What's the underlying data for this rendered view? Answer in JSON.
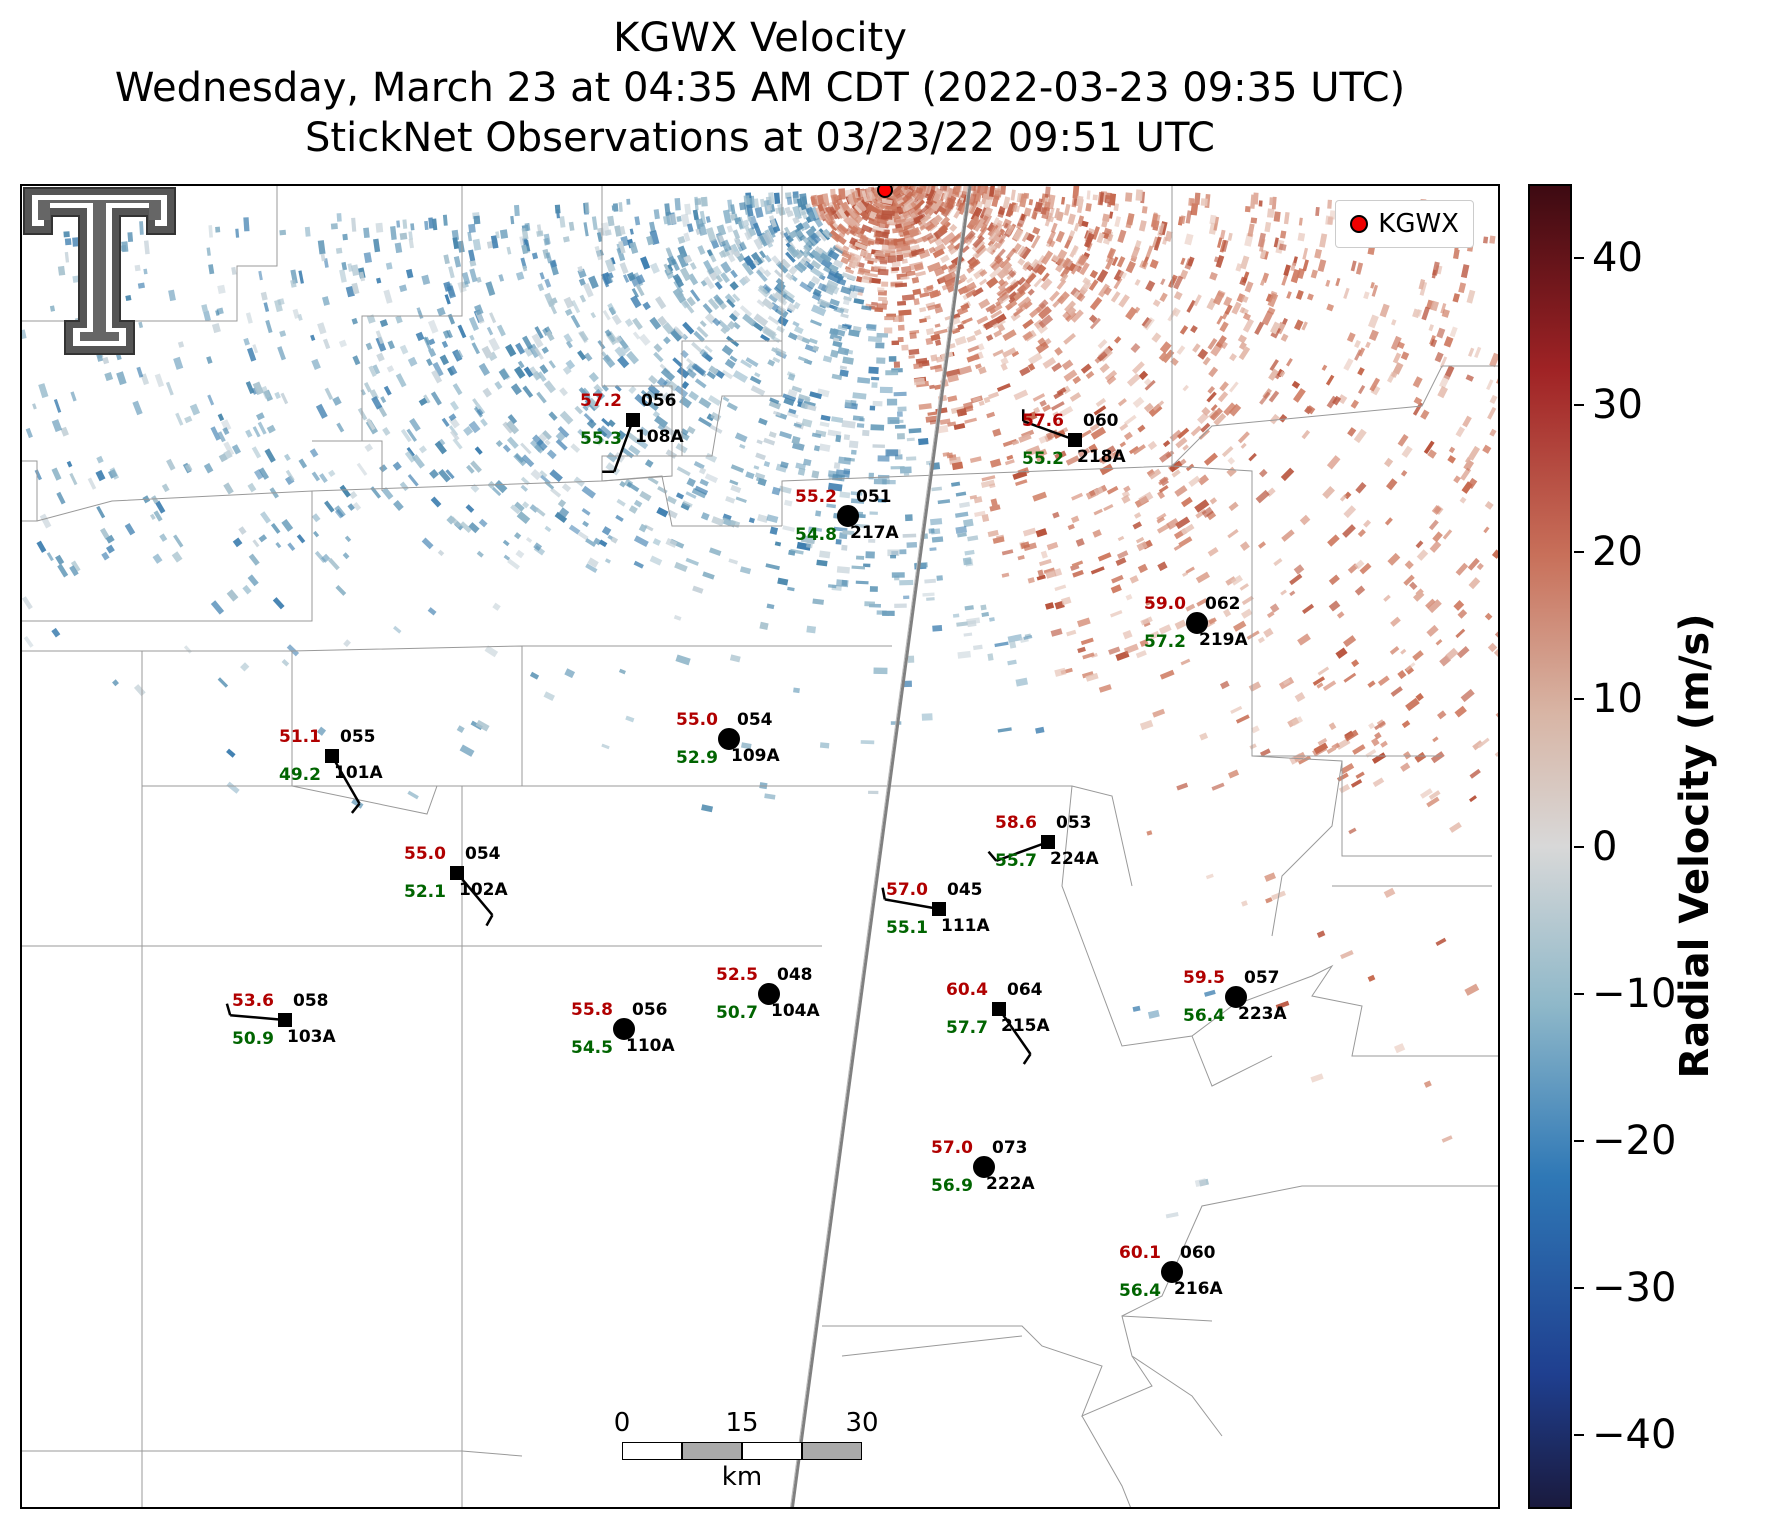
{
  "header": {
    "title": "KGWX Velocity",
    "subtitle": "Wednesday, March 23 at 04:35 AM CDT (2022-03-23 09:35 UTC)",
    "obs_time": "StickNet Observations at 03/23/22 09:51 UTC"
  },
  "legend": {
    "label": "KGWX"
  },
  "scalebar": {
    "labels": [
      "0",
      "15",
      "30"
    ],
    "unit": "km"
  },
  "colorbar": {
    "title": "Radial Velocity (m/s)",
    "ticks": [
      "40",
      "30",
      "20",
      "10",
      "0",
      "−10",
      "−20",
      "−30",
      "−40"
    ],
    "colors": {
      "high": "#3d0a12",
      "mid": "#d8d8d8",
      "low": "#1a1a3e"
    }
  },
  "colors": {
    "temp": "#b00000",
    "dew": "#006400",
    "id": "#000000",
    "county": "#999999"
  },
  "stations": [
    {
      "id": "108A",
      "temp": "57.2",
      "dew": "55.3",
      "pres": "056",
      "symbol": "square"
    },
    {
      "id": "218A",
      "temp": "57.6",
      "dew": "55.2",
      "pres": "060",
      "symbol": "square"
    },
    {
      "id": "217A",
      "temp": "55.2",
      "dew": "54.8",
      "pres": "051",
      "symbol": "circle"
    },
    {
      "id": "219A",
      "temp": "59.0",
      "dew": "57.2",
      "pres": "062",
      "symbol": "circle"
    },
    {
      "id": "101A",
      "temp": "51.1",
      "dew": "49.2",
      "pres": "055",
      "symbol": "square"
    },
    {
      "id": "109A",
      "temp": "55.0",
      "dew": "52.9",
      "pres": "054",
      "symbol": "circle"
    },
    {
      "id": "224A",
      "temp": "58.6",
      "dew": "55.7",
      "pres": "053",
      "symbol": "square"
    },
    {
      "id": "102A",
      "temp": "55.0",
      "dew": "52.1",
      "pres": "054",
      "symbol": "square"
    },
    {
      "id": "111A",
      "temp": "57.0",
      "dew": "55.1",
      "pres": "045",
      "symbol": "square"
    },
    {
      "id": "104A",
      "temp": "52.5",
      "dew": "50.7",
      "pres": "048",
      "symbol": "circle"
    },
    {
      "id": "215A",
      "temp": "60.4",
      "dew": "57.7",
      "pres": "064",
      "symbol": "square"
    },
    {
      "id": "223A",
      "temp": "59.5",
      "dew": "56.4",
      "pres": "057",
      "symbol": "circle"
    },
    {
      "id": "103A",
      "temp": "53.6",
      "dew": "50.9",
      "pres": "058",
      "symbol": "square"
    },
    {
      "id": "110A",
      "temp": "55.8",
      "dew": "54.5",
      "pres": "056",
      "symbol": "circle"
    },
    {
      "id": "222A",
      "temp": "57.0",
      "dew": "56.9",
      "pres": "073",
      "symbol": "circle"
    },
    {
      "id": "216A",
      "temp": "60.1",
      "dew": "56.4",
      "pres": "060",
      "symbol": "circle"
    }
  ]
}
